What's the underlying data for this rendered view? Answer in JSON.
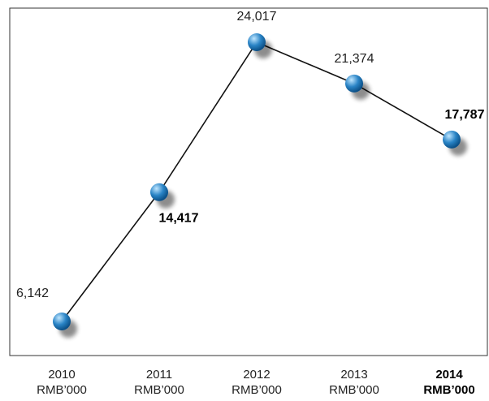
{
  "chart_data": {
    "type": "line",
    "categories": [
      "2010",
      "2011",
      "2012",
      "2013",
      "2014"
    ],
    "units": [
      "RMB’000",
      "RMB’000",
      "RMB’000",
      "RMB’000",
      "RMB’000"
    ],
    "values": [
      6142,
      14417,
      24017,
      21374,
      17787
    ],
    "value_labels": [
      "6,142",
      "14,417",
      "24,017",
      "21,374",
      "17,787"
    ],
    "bold_value_labels": [
      false,
      true,
      false,
      false,
      true
    ],
    "bold_categories": [
      false,
      false,
      false,
      false,
      true
    ],
    "title": "",
    "xlabel": "",
    "ylabel": "",
    "ylim": [
      4200,
      25300
    ],
    "grid": false,
    "legend": "none",
    "colors": {
      "line": "#111111",
      "marker_fill": "#2a84c6",
      "marker_highlight": "#bfe6ff",
      "marker_dark": "#0b4f86",
      "frame": "#333333"
    }
  }
}
